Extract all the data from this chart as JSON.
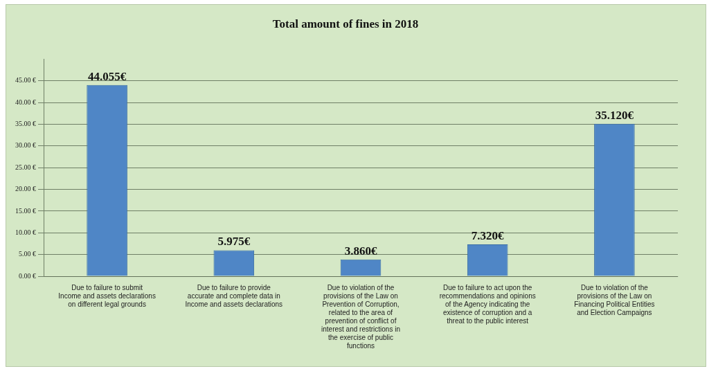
{
  "chart_data": {
    "type": "bar",
    "title": "Total amount of fines in 2018",
    "categories": [
      "Due to failure to submit Income and assets declarations on different legal grounds",
      "Due to failure to provide accurate and complete data in Income and assets declarations",
      "Due to violation of the provisions of the Law on Prevention of Corruption, related to the area of prevention of conflict of interest and restrictions in the exercise of public functions",
      "Due to failure to act upon the recommendations and opinions of the Agency indicating the existence of corruption and a threat to the public interest",
      "Due to violation of the provisions of the Law on Financing Political Entities and Election Campaigns"
    ],
    "values": [
      44.055,
      5.975,
      3.86,
      7.32,
      35.12
    ],
    "value_labels": [
      "44.055€",
      "5.975€",
      "3.860€",
      "7.320€",
      "35.120€"
    ],
    "color": "#4f86c6",
    "ylim": [
      0,
      50
    ],
    "yticks": [
      {
        "value": 0,
        "label": "0.00 €"
      },
      {
        "value": 5,
        "label": "5.00 €"
      },
      {
        "value": 10,
        "label": "10.00 €"
      },
      {
        "value": 15,
        "label": "15.00 €"
      },
      {
        "value": 20,
        "label": "20.00 €"
      },
      {
        "value": 25,
        "label": "25.00 €"
      },
      {
        "value": 30,
        "label": "30.00 €"
      },
      {
        "value": 35,
        "label": "35.00 €"
      },
      {
        "value": 40,
        "label": "40.00 €"
      },
      {
        "value": 45,
        "label": "45.00 €"
      }
    ],
    "grid": "y"
  }
}
